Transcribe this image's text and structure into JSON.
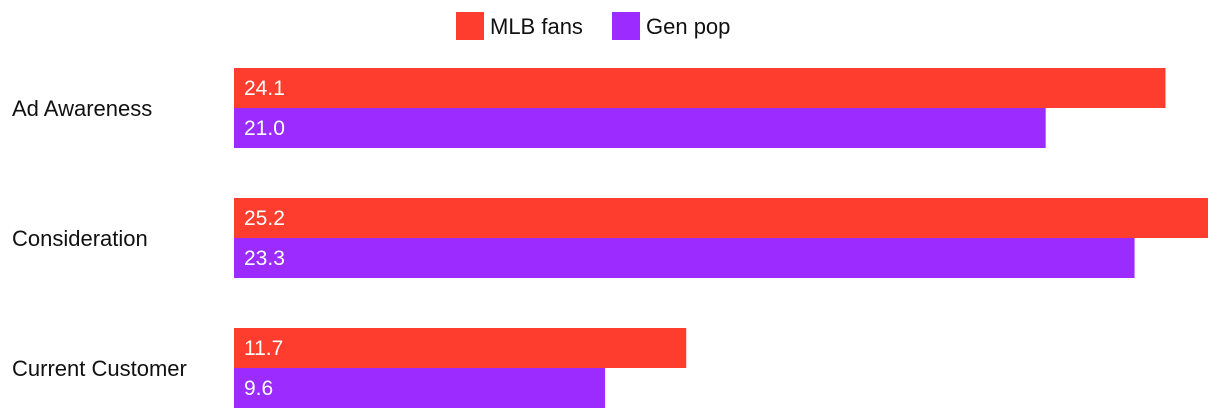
{
  "chart_data": {
    "type": "bar",
    "orientation": "horizontal",
    "categories": [
      "Ad Awareness",
      "Consideration",
      "Current Customer"
    ],
    "series": [
      {
        "name": "MLB fans",
        "color": "#ff3d2e",
        "values": [
          24.1,
          25.2,
          11.7
        ],
        "labels": [
          "24.1",
          "25.2",
          "11.7"
        ]
      },
      {
        "name": "Gen pop",
        "color": "#9b2bff",
        "values": [
          21.0,
          23.3,
          9.6
        ],
        "labels": [
          "21.0",
          "23.3",
          "9.6"
        ]
      }
    ],
    "title": "",
    "xlabel": "",
    "ylabel": "",
    "xlim": [
      0,
      25.2
    ],
    "grid": false,
    "legend": "top-center",
    "data_labels": "inside-start"
  }
}
